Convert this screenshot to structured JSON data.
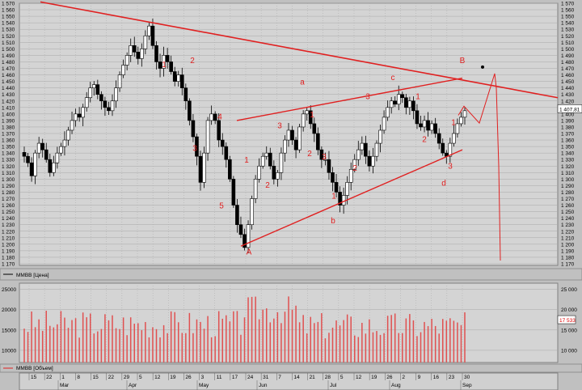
{
  "chart_data": [
    {
      "type": "candlestick",
      "symbol": "MMBB [Цена]",
      "last_price": "1 407,81",
      "ylim": [
        1170,
        1570
      ],
      "y_ticks": [
        1170,
        1180,
        1190,
        1200,
        1210,
        1220,
        1230,
        1240,
        1250,
        1260,
        1270,
        1280,
        1290,
        1300,
        1310,
        1320,
        1330,
        1340,
        1350,
        1360,
        1370,
        1380,
        1390,
        1400,
        1410,
        1420,
        1430,
        1440,
        1450,
        1460,
        1470,
        1480,
        1490,
        1500,
        1510,
        1520,
        1530,
        1540,
        1550,
        1560,
        1570
      ],
      "grid": true,
      "path": [
        1335,
        1325,
        1305,
        1340,
        1355,
        1345,
        1330,
        1310,
        1325,
        1340,
        1350,
        1360,
        1375,
        1390,
        1400,
        1395,
        1410,
        1425,
        1440,
        1445,
        1430,
        1420,
        1410,
        1405,
        1420,
        1440,
        1460,
        1475,
        1490,
        1505,
        1495,
        1485,
        1500,
        1520,
        1535,
        1505,
        1480,
        1470,
        1490,
        1480,
        1465,
        1450,
        1460,
        1440,
        1420,
        1390,
        1365,
        1335,
        1295,
        1340,
        1390,
        1400,
        1390,
        1360,
        1350,
        1330,
        1300,
        1260,
        1230,
        1215,
        1195,
        1230,
        1270,
        1300,
        1320,
        1335,
        1340,
        1320,
        1300,
        1310,
        1340,
        1360,
        1375,
        1360,
        1345,
        1380,
        1400,
        1405,
        1385,
        1370,
        1345,
        1330,
        1330,
        1310,
        1295,
        1280,
        1260,
        1275,
        1295,
        1315,
        1330,
        1345,
        1355,
        1335,
        1320,
        1335,
        1355,
        1375,
        1395,
        1410,
        1420,
        1415,
        1430,
        1425,
        1410,
        1420,
        1405,
        1385,
        1380,
        1390,
        1375,
        1385,
        1370,
        1355,
        1340,
        1335,
        1355,
        1370,
        1385,
        1395,
        1405
      ],
      "wave_labels": [
        {
          "text": "1",
          "price": 1472
        },
        {
          "text": "2",
          "price": 1478
        },
        {
          "text": "3",
          "price": 1343
        },
        {
          "text": "4",
          "price": 1392
        },
        {
          "text": "5",
          "price": 1255
        },
        {
          "text": "A",
          "price": 1184
        },
        {
          "text": "1",
          "price": 1325
        },
        {
          "text": "2",
          "price": 1287
        },
        {
          "text": "3",
          "price": 1378
        },
        {
          "text": "a",
          "price": 1445
        },
        {
          "text": "1",
          "price": 1395
        },
        {
          "text": "2",
          "price": 1335
        },
        {
          "text": "3",
          "price": 1330
        },
        {
          "text": "1",
          "price": 1270
        },
        {
          "text": "b",
          "price": 1232
        },
        {
          "text": "2",
          "price": 1313
        },
        {
          "text": "3",
          "price": 1423
        },
        {
          "text": "c",
          "price": 1452
        },
        {
          "text": "1",
          "price": 1423
        },
        {
          "text": "2",
          "price": 1357
        },
        {
          "text": "3",
          "price": 1316
        },
        {
          "text": "d",
          "price": 1290
        },
        {
          "text": "1",
          "price": 1383
        },
        {
          "text": "B",
          "price": 1478
        }
      ],
      "volume": {
        "label": "MMBB [Объем]",
        "last_value": "17 533",
        "ylim": [
          7000,
          26500
        ],
        "y_ticks": [
          10000,
          15000,
          20000,
          25000
        ],
        "y_tick_labels": [
          "10 000",
          "15 000",
          "20 000",
          "25 000"
        ],
        "y_tick_labels_left": [
          "10000",
          "15000",
          "20000",
          "25000"
        ]
      },
      "x_axis": {
        "day_ticks": [
          "15",
          "22",
          "1",
          "8",
          "15",
          "22",
          "29",
          "5",
          "12",
          "19",
          "26",
          "3",
          "11",
          "17",
          "24",
          "31",
          "7",
          "14",
          "21",
          "28",
          "5",
          "12",
          "19",
          "26",
          "2",
          "9",
          "16",
          "23",
          "30"
        ],
        "months": [
          "Mar",
          "Apr",
          "May",
          "Jun",
          "Jul",
          "Aug",
          "Sep"
        ]
      },
      "colors": {
        "background": "#c0c0c0",
        "plot_bg": "#d4d4d4",
        "grid": "#a9a9a9",
        "candle_up": "#ffffff",
        "candle_down": "#000000",
        "annotation": "#e02020",
        "volume_bar": "#e05050"
      }
    }
  ]
}
